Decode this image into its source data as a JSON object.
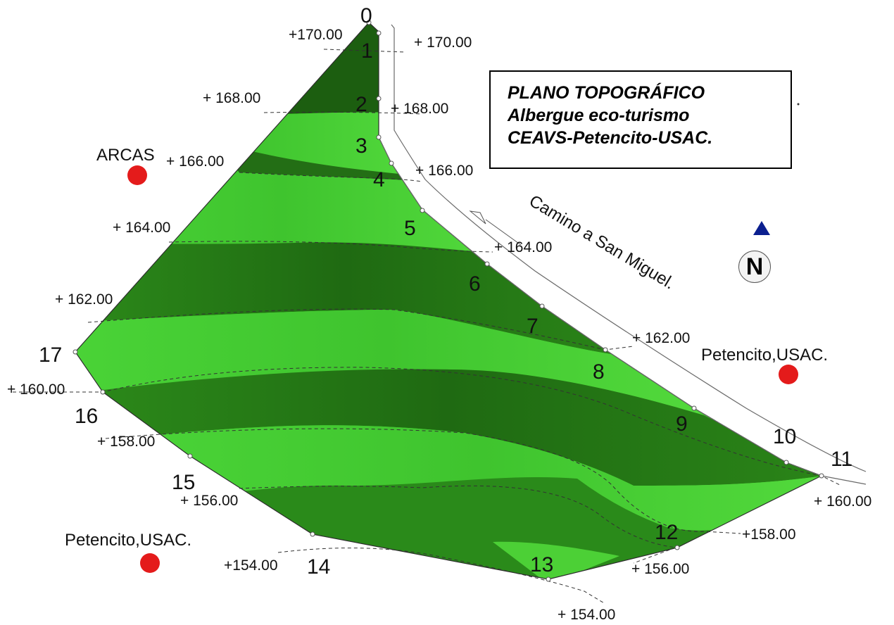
{
  "title": {
    "line1": "PLANO TOPOGRÁFICO",
    "line2": "Albergue eco-turismo",
    "line3": "CEAVS-Petencito-USAC."
  },
  "north_label": "N",
  "road_label": "Camino a San Miguel.",
  "places": {
    "arcas": "ARCAS",
    "petencito_east": "Petencito,USAC.",
    "petencito_south": "Petencito,USAC."
  },
  "points": [
    "0",
    "1",
    "2",
    "3",
    "4",
    "5",
    "6",
    "7",
    "8",
    "9",
    "10",
    "11",
    "12",
    "13",
    "14",
    "15",
    "16",
    "17"
  ],
  "contours": {
    "c170_left": "+170.00",
    "c170_right": "+ 170.00",
    "c168_left": "+ 168.00",
    "c168_right": "+ 168.00",
    "c166_left": "+ 166.00",
    "c166_right": "+ 166.00",
    "c164_left": "+ 164.00",
    "c164_right": "+ 164.00",
    "c162_left": "+ 162.00",
    "c162_right": "+ 162.00",
    "c160_left": "+ 160.00",
    "c160_right": "+ 160.00",
    "c158_left": "+ 158.00",
    "c158_right": "+158.00",
    "c156_left": "+ 156.00",
    "c156_right": "+ 156.00",
    "c154_left": "+154.00",
    "c154_right": "+ 154.00"
  },
  "colors": {
    "terrain_light": "#4fd63a",
    "terrain_dark": "#1e6a12",
    "marker_red": "#e41b1b",
    "north_arrow": "#0b1f8f"
  }
}
